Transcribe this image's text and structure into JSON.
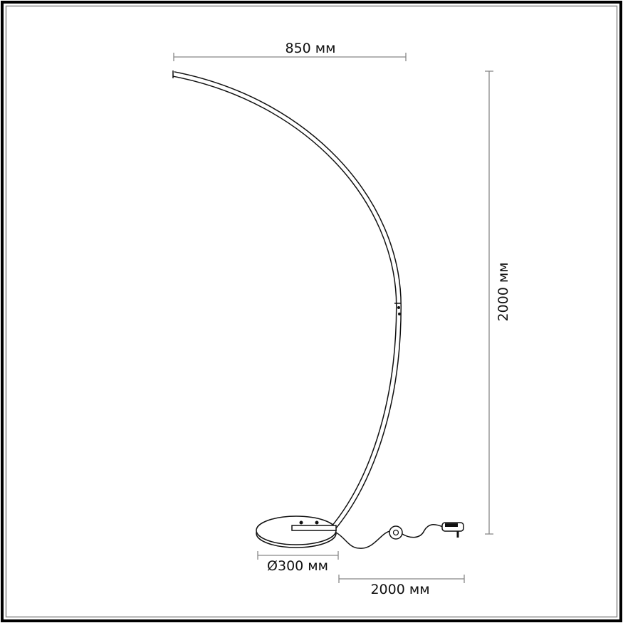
{
  "dimensions": {
    "arc_width": "850 мм",
    "height": "2000 мм",
    "base_diameter": "Ø300 мм",
    "cable_length": "2000 мм"
  }
}
